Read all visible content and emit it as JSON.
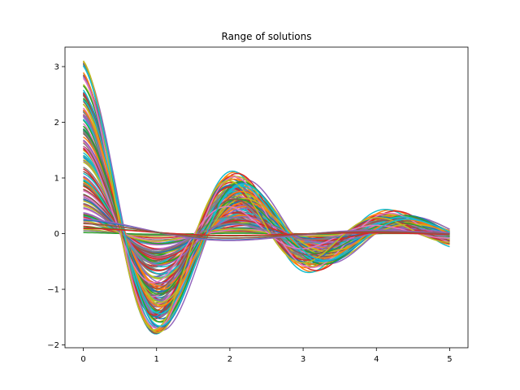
{
  "chart_data": {
    "type": "line",
    "title": "Range of solutions",
    "xlabel": "",
    "ylabel": "",
    "xlim": [
      -0.25,
      5.25
    ],
    "ylim": [
      -2.05,
      3.35
    ],
    "xticks": [
      0,
      1,
      2,
      3,
      4,
      5
    ],
    "yticks": [
      -2,
      -1,
      0,
      1,
      2,
      3
    ],
    "tick_labels_x": [
      "0",
      "1",
      "2",
      "3",
      "4",
      "5"
    ],
    "tick_labels_y": [
      "−2",
      "−1",
      "0",
      "1",
      "2",
      "3"
    ],
    "grid": false,
    "legend": "none",
    "series_note_count": 150,
    "t_range": [
      0,
      5
    ],
    "model": "damped oscillation y(t) = a·exp(-0.5t)·cos(3t) + b·exp(-0.5t)·sin(3t), amplitude a in [0, 3.14]",
    "palette": [
      "#1f77b4",
      "#ff7f0e",
      "#2ca02c",
      "#d62728",
      "#9467bd",
      "#8c564b",
      "#e377c2",
      "#7f7f7f",
      "#bcbd22",
      "#17becf"
    ],
    "sample_series": [
      {
        "x": [
          0,
          0.5,
          1.0,
          1.5,
          2.0,
          2.5,
          3.0,
          3.5,
          4.0,
          4.5,
          5.0
        ],
        "values": [
          3.14,
          0.16,
          -1.77,
          -0.55,
          0.88,
          0.51,
          -0.44,
          -0.28,
          0.2,
          0.13,
          -0.06
        ]
      },
      {
        "x": [
          0,
          0.5,
          1.0,
          1.5,
          2.0,
          2.5,
          3.0,
          3.5,
          4.0,
          4.5,
          5.0
        ],
        "values": [
          0.26,
          0.2,
          0.05,
          -0.06,
          0.03,
          0.1,
          0.02,
          -0.04,
          0.0,
          0.01,
          0.0
        ]
      }
    ]
  }
}
